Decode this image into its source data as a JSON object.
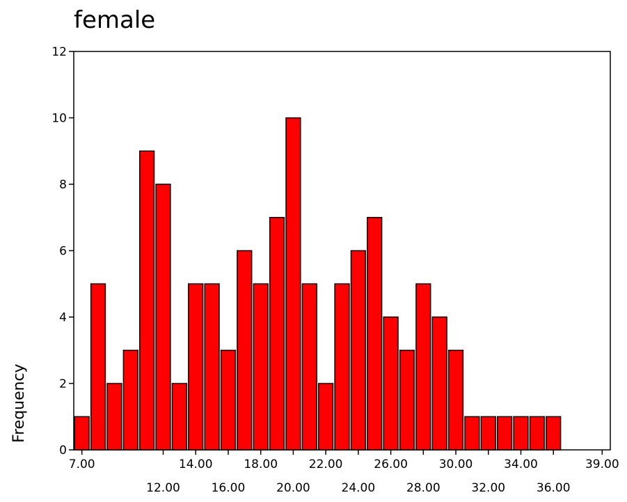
{
  "chart_data": {
    "type": "bar",
    "title": "female",
    "xlabel": "",
    "ylabel": "Frequency",
    "ylim": [
      0,
      12
    ],
    "yticks": [
      "0",
      "2",
      "4",
      "6",
      "8",
      "10",
      "12"
    ],
    "xlim": [
      6.5,
      39.5
    ],
    "xticks_row1": [
      "7.00",
      "14.00",
      "18.00",
      "22.00",
      "26.00",
      "30.00",
      "34.00",
      "39.00"
    ],
    "xticks_row2": [
      "12.00",
      "16.00",
      "20.00",
      "24.00",
      "28.00",
      "32.00",
      "36.00"
    ],
    "bin_width": 1,
    "categories": [
      7,
      8,
      9,
      10,
      11,
      12,
      13,
      14,
      15,
      16,
      17,
      18,
      19,
      20,
      21,
      22,
      23,
      24,
      25,
      26,
      27,
      28,
      29,
      30,
      31,
      32,
      33,
      34,
      35,
      36
    ],
    "values": [
      1,
      5,
      2,
      3,
      9,
      8,
      2,
      5,
      5,
      3,
      6,
      5,
      7,
      10,
      5,
      2,
      5,
      6,
      7,
      4,
      3,
      5,
      4,
      3,
      1,
      1,
      1,
      1,
      1,
      1
    ],
    "bar_color": "#ff0000",
    "edge_color": "#000000",
    "grid": false
  }
}
